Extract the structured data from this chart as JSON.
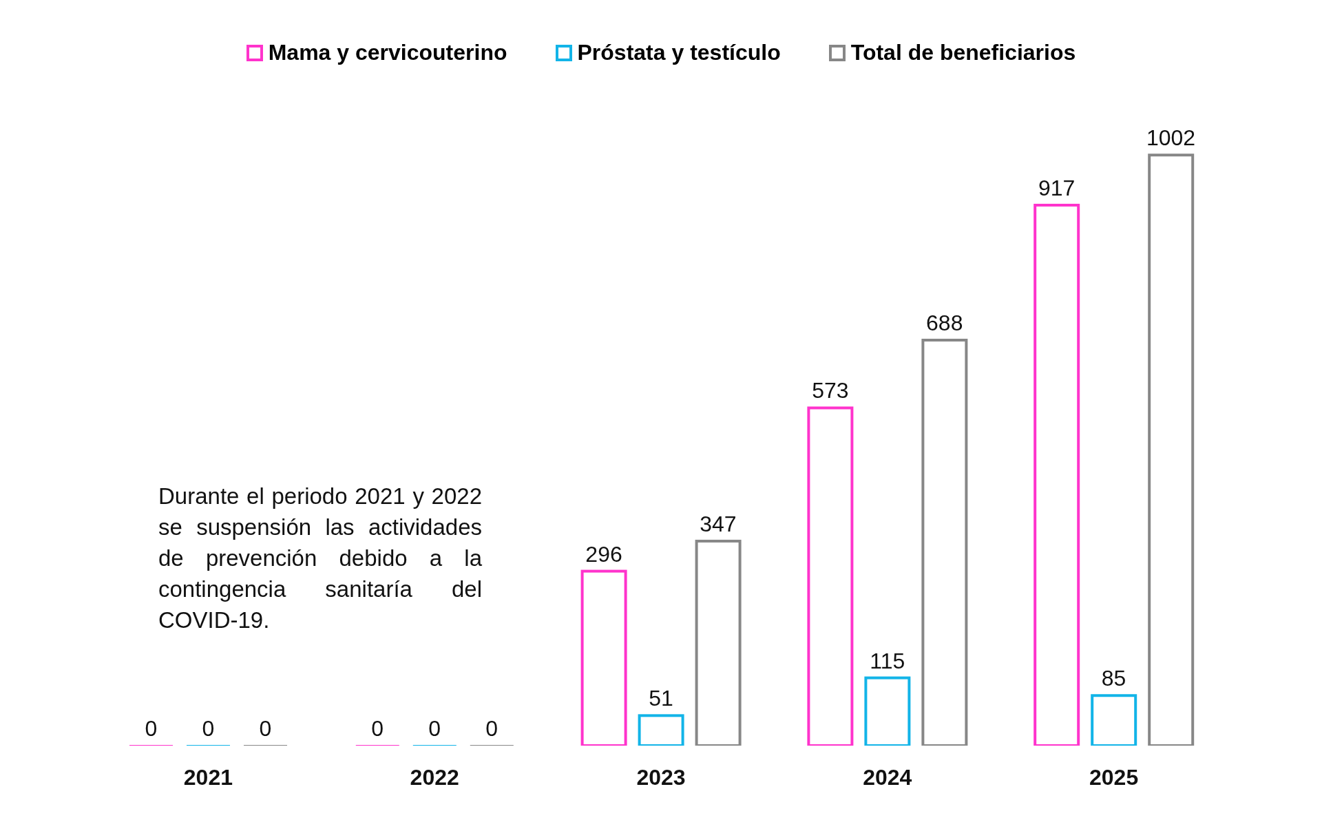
{
  "chart_data": {
    "type": "bar",
    "categories": [
      "2021",
      "2022",
      "2023",
      "2024",
      "2025"
    ],
    "series": [
      {
        "name": "Mama y cervicouterino",
        "color": "#ff33cc",
        "values": [
          0,
          0,
          296,
          573,
          917
        ]
      },
      {
        "name": "Próstata y testículo",
        "color": "#12b4e8",
        "values": [
          0,
          0,
          51,
          115,
          85
        ]
      },
      {
        "name": "Total de beneficiarios",
        "color": "#878787",
        "values": [
          0,
          0,
          347,
          688,
          1002
        ]
      }
    ],
    "data_labels": true,
    "legend": "top",
    "tick_labels": "x",
    "grid": false,
    "annotations": [
      "Durante el periodo 2021 y 2022 se suspensión las actividades de prevención debido a la contingencia sanitaría del COVID-19."
    ]
  }
}
